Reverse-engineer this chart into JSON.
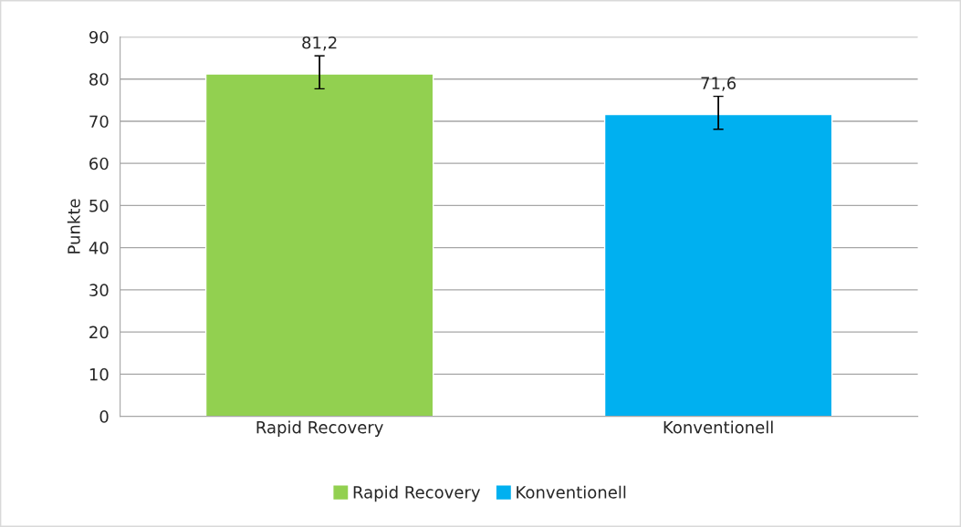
{
  "chart_data": {
    "type": "bar",
    "categories": [
      "Rapid Recovery",
      "Konventionell"
    ],
    "ylabel": "Punkte",
    "series": [
      {
        "name": "Rapid Recovery",
        "color": "#92d050",
        "values": [
          81.2,
          null
        ],
        "value_labels": [
          "81,2",
          null
        ],
        "errors": [
          [
            77.7,
            85.5
          ],
          null
        ]
      },
      {
        "name": "Konventionell",
        "color": "#00b0f0",
        "values": [
          null,
          71.6
        ],
        "value_labels": [
          null,
          "71,6"
        ],
        "errors": [
          null,
          [
            68.1,
            75.9
          ]
        ]
      }
    ],
    "ylim": [
      0,
      90
    ],
    "yticks": [
      0,
      10,
      20,
      30,
      40,
      50,
      60,
      70,
      80,
      90
    ],
    "grid": "y",
    "legend": "bottom"
  }
}
